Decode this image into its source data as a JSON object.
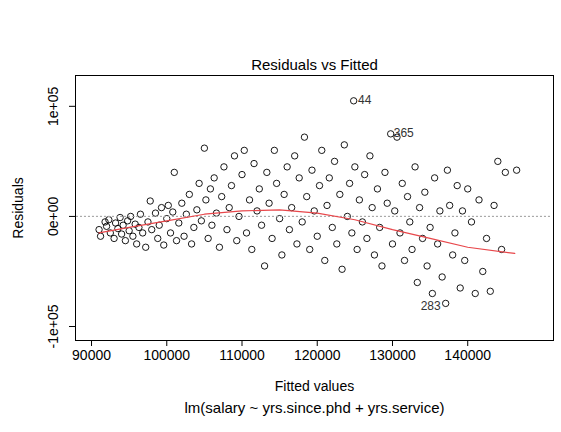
{
  "chart_data": {
    "type": "scatter",
    "title": "Residuals vs Fitted",
    "x_label": "Fitted values",
    "y_label": "Residuals",
    "caption": "lm(salary ~ yrs.since.phd + yrs.service)",
    "xlim": [
      87870,
      151400
    ],
    "ylim": [
      -112700,
      128000
    ],
    "xticks": [
      90000,
      100000,
      110000,
      120000,
      130000,
      140000
    ],
    "yticks": [
      {
        "value": -100000,
        "label": "-1e+05"
      },
      {
        "value": 0,
        "label": "0e+00"
      },
      {
        "value": 100000,
        "label": "1e+05"
      }
    ],
    "grid": false,
    "series": [
      {
        "type": "scatter",
        "marker": "circle",
        "color": "#000000",
        "x": [
          91000,
          91200,
          91800,
          92000,
          92300,
          92500,
          93000,
          93200,
          93500,
          93800,
          94000,
          94200,
          94500,
          94800,
          95000,
          95200,
          95500,
          95800,
          96000,
          96300,
          96500,
          96800,
          97200,
          97500,
          97800,
          98000,
          98500,
          98800,
          99000,
          99300,
          99600,
          100000,
          100200,
          100500,
          100800,
          101000,
          101300,
          101600,
          102000,
          102300,
          102600,
          103000,
          103300,
          103600,
          104000,
          104300,
          104600,
          105000,
          105200,
          105500,
          105800,
          106000,
          106300,
          106600,
          107000,
          107300,
          107600,
          108000,
          108300,
          108600,
          109000,
          109300,
          109600,
          110000,
          110300,
          110600,
          111000,
          111300,
          111600,
          112000,
          112300,
          112600,
          113000,
          113300,
          113600,
          114000,
          114300,
          114600,
          115000,
          115300,
          115600,
          116000,
          116300,
          116600,
          117000,
          117300,
          117600,
          118000,
          118300,
          118600,
          119000,
          119300,
          119600,
          120000,
          120300,
          120600,
          121000,
          121300,
          121600,
          122000,
          122300,
          122600,
          123000,
          123300,
          123600,
          124000,
          124300,
          124600,
          124840,
          125000,
          125300,
          125600,
          126000,
          126300,
          126600,
          127000,
          127300,
          127600,
          128000,
          128300,
          128600,
          129000,
          129300,
          129760,
          130000,
          130300,
          130600,
          131000,
          131300,
          131600,
          132000,
          132300,
          132600,
          133000,
          133300,
          133600,
          134000,
          134300,
          134600,
          135000,
          135300,
          135600,
          136000,
          136300,
          136600,
          137070,
          137300,
          137600,
          138000,
          138300,
          138600,
          139000,
          139300,
          139600,
          140000,
          140500,
          141000,
          141500,
          142000,
          142500,
          143000,
          143500,
          144000,
          144500,
          145000,
          146500
        ],
        "values": [
          -12000,
          -18000,
          -5000,
          -9000,
          -3000,
          -15000,
          -20000,
          -6000,
          -11000,
          -1000,
          -16000,
          -8000,
          -22000,
          -4000,
          -13000,
          0,
          -18000,
          -7000,
          -25000,
          -10000,
          2000,
          -15000,
          -28000,
          -5000,
          14000,
          -12000,
          3000,
          -20000,
          -8000,
          8000,
          -26000,
          -2000,
          10000,
          -15000,
          4000,
          40000,
          -22000,
          -6000,
          12000,
          -18000,
          2000,
          20000,
          -25000,
          -10000,
          6000,
          30000,
          -4000,
          62000,
          15000,
          -20000,
          25000,
          -8000,
          35000,
          3000,
          -28000,
          18000,
          45000,
          -12000,
          8000,
          28000,
          55000,
          -22000,
          0,
          38000,
          60000,
          -15000,
          15000,
          -30000,
          48000,
          5000,
          25000,
          -8000,
          -45000,
          40000,
          12000,
          -20000,
          60000,
          30000,
          -2000,
          -35000,
          20000,
          45000,
          -12000,
          8000,
          55000,
          -25000,
          35000,
          -5000,
          72000,
          18000,
          -30000,
          42000,
          5000,
          -18000,
          28000,
          60000,
          -40000,
          10000,
          35000,
          -10000,
          50000,
          -25000,
          20000,
          -48000,
          65000,
          0,
          30000,
          -15000,
          105000,
          45000,
          -30000,
          15000,
          -5000,
          38000,
          -20000,
          55000,
          8000,
          -35000,
          25000,
          -10000,
          -45000,
          40000,
          12000,
          75000,
          -25000,
          5000,
          72000,
          -15000,
          30000,
          -40000,
          18000,
          -5000,
          -30000,
          45000,
          -60000,
          8000,
          -20000,
          22000,
          -45000,
          -10000,
          -70000,
          35000,
          -25000,
          5000,
          -55000,
          -79000,
          42000,
          10000,
          -35000,
          -15000,
          28000,
          -65000,
          5000,
          -40000,
          25000,
          -5000,
          -70000,
          15000,
          -50000,
          -20000,
          -68000,
          10000,
          50000,
          -30000,
          40000,
          42000
        ]
      },
      {
        "type": "line",
        "line_style": "dotted",
        "color": "#aaaaaa",
        "x": [
          88000,
          151000
        ],
        "values": [
          0,
          0
        ]
      },
      {
        "type": "line",
        "line_style": "solid",
        "color": "#e8474b",
        "x": [
          91000,
          95000,
          100000,
          105000,
          110000,
          115000,
          120000,
          125000,
          130000,
          135000,
          140000,
          146250
        ],
        "values": [
          -15000,
          -10000,
          -4000,
          2000,
          5000,
          6000,
          3000,
          -3000,
          -12000,
          -20000,
          -28000,
          -33600
        ]
      }
    ],
    "annotations": [
      {
        "text": "44",
        "x": 126300,
        "y": 105450
      },
      {
        "text": "365",
        "x": 131500,
        "y": 75450
      },
      {
        "text": "283",
        "x": 135080,
        "y": -81800
      }
    ]
  }
}
